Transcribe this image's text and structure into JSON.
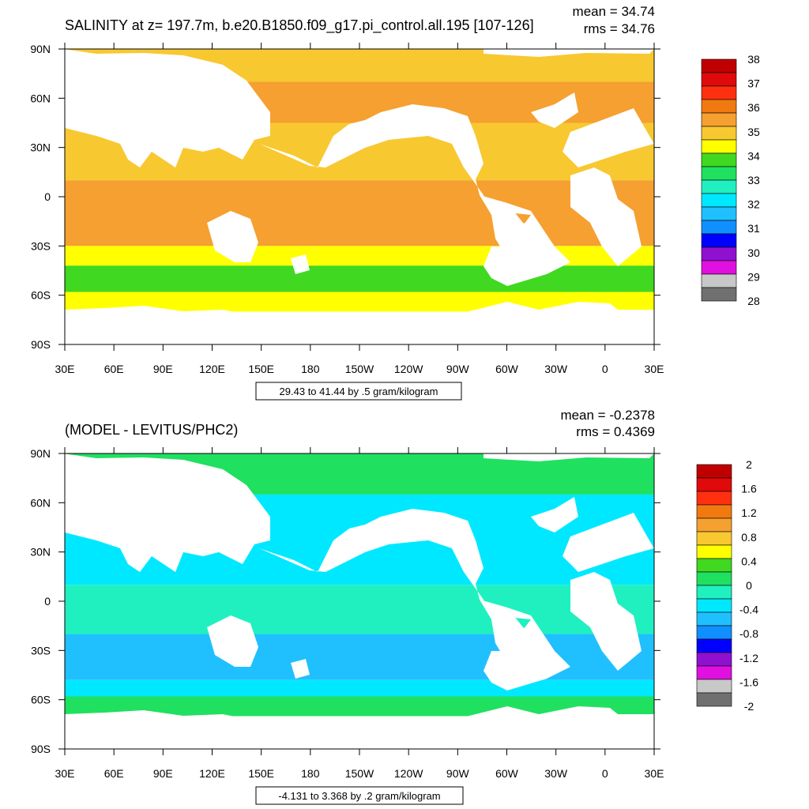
{
  "panels": [
    {
      "title": "SALINITY at z= 197.7m, b.e20.B1850.f09_g17.pi_control.all.195 [107-126]",
      "mean": "mean = 34.74",
      "rms": "rms = 34.76",
      "caption": "29.43 to 41.44 by .5 gram/kilogram",
      "lat_ticks": [
        "90N",
        "60N",
        "30N",
        "0",
        "30S",
        "60S",
        "90S"
      ],
      "lon_ticks": [
        "30E",
        "60E",
        "90E",
        "120E",
        "150E",
        "180",
        "150W",
        "120W",
        "90W",
        "60W",
        "30W",
        "0",
        "30E"
      ],
      "colorbar": {
        "labels": [
          "38",
          "37",
          "36",
          "35",
          "34",
          "33",
          "32",
          "31",
          "30",
          "29",
          "28"
        ],
        "colors": [
          "#c00000",
          "#e00a0a",
          "#ff3010",
          "#f07a10",
          "#f5a030",
          "#f8c830",
          "#ffff00",
          "#40d820",
          "#20e060",
          "#20f0c0",
          "#00e8ff",
          "#20c0ff",
          "#1090ff",
          "#0000ff",
          "#9010d0",
          "#e010e0",
          "#c8c8c8",
          "#707070"
        ]
      },
      "bands": [
        {
          "lat_from": 90,
          "lat_to": 70,
          "color": "#f8c830"
        },
        {
          "lat_from": 70,
          "lat_to": 45,
          "color": "#f5a030"
        },
        {
          "lat_from": 45,
          "lat_to": 10,
          "color": "#f8c830"
        },
        {
          "lat_from": 10,
          "lat_to": -30,
          "color": "#f5a030"
        },
        {
          "lat_from": -30,
          "lat_to": -42,
          "color": "#ffff00"
        },
        {
          "lat_from": -42,
          "lat_to": -58,
          "color": "#40d820"
        },
        {
          "lat_from": -58,
          "lat_to": -70,
          "color": "#ffff00"
        }
      ]
    },
    {
      "title": "(MODEL - LEVITUS/PHC2)",
      "mean": "mean = -0.2378",
      "rms": "rms = 0.4369",
      "caption": "-4.131 to 3.368 by .2 gram/kilogram",
      "lat_ticks": [
        "90N",
        "60N",
        "30N",
        "0",
        "30S",
        "60S",
        "90S"
      ],
      "lon_ticks": [
        "30E",
        "60E",
        "90E",
        "120E",
        "150E",
        "180",
        "150W",
        "120W",
        "90W",
        "60W",
        "30W",
        "0",
        "30E"
      ],
      "colorbar": {
        "labels": [
          "2",
          "1.6",
          "1.2",
          "0.8",
          "0.4",
          "0",
          "-0.4",
          "-0.8",
          "-1.2",
          "-1.6",
          "-2"
        ],
        "colors": [
          "#c00000",
          "#e00a0a",
          "#ff3010",
          "#f07a10",
          "#f5a030",
          "#f8c830",
          "#ffff00",
          "#40d820",
          "#20e060",
          "#20f0c0",
          "#00e8ff",
          "#20c0ff",
          "#1090ff",
          "#0000ff",
          "#9010d0",
          "#e010e0",
          "#c8c8c8",
          "#707070"
        ]
      },
      "bands": [
        {
          "lat_from": 90,
          "lat_to": 65,
          "color": "#20e060"
        },
        {
          "lat_from": 65,
          "lat_to": 10,
          "color": "#00e8ff"
        },
        {
          "lat_from": 10,
          "lat_to": -20,
          "color": "#20f0c0"
        },
        {
          "lat_from": -20,
          "lat_to": -48,
          "color": "#20c0ff"
        },
        {
          "lat_from": -48,
          "lat_to": -58,
          "color": "#00e8ff"
        },
        {
          "lat_from": -58,
          "lat_to": -70,
          "color": "#20e060"
        }
      ]
    }
  ]
}
